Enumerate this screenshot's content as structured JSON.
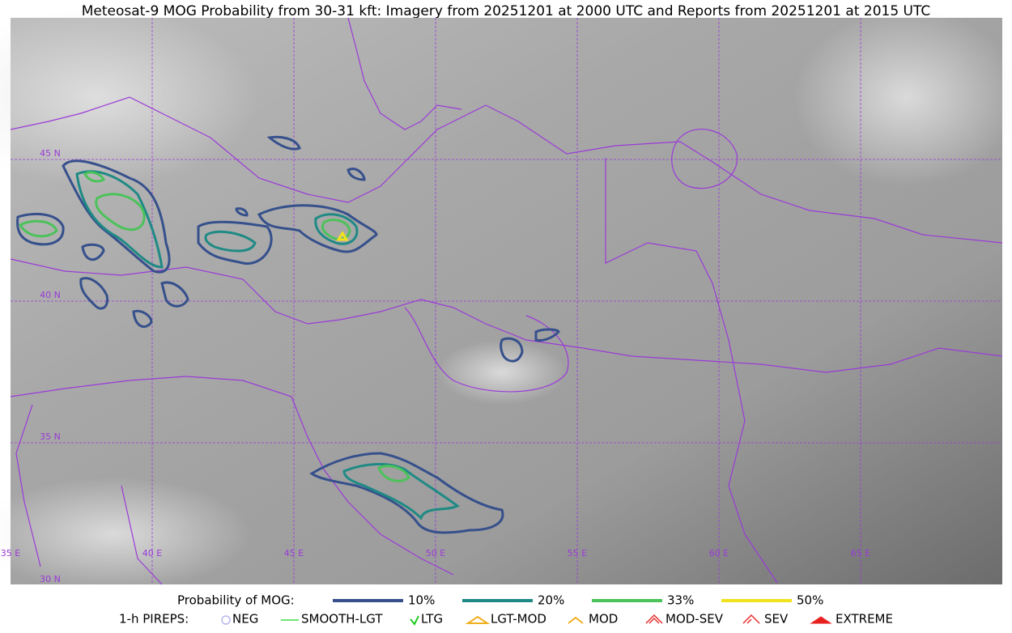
{
  "title": "Meteosat-9 MOG Probability from 30-31 kft: Imagery from 20251201 at 2000 UTC and Reports from 20251201 at 2015 UTC",
  "map": {
    "lat_labels": [
      "45 N",
      "40 N",
      "35 N",
      "30 N"
    ],
    "lon_labels": [
      "35 E",
      "40 E",
      "45 E",
      "50 E",
      "55 E",
      "60 E",
      "65 E"
    ]
  },
  "legend": {
    "probability": {
      "title": "Probability of MOG:",
      "items": [
        {
          "label": "10%",
          "color": "#36508c"
        },
        {
          "label": "20%",
          "color": "#1f8a85"
        },
        {
          "label": "33%",
          "color": "#4cc25a"
        },
        {
          "label": "50%",
          "color": "#f2e21c"
        }
      ]
    },
    "pireps": {
      "title": "1-h PIREPS:",
      "items": [
        {
          "label": "NEG",
          "color": "#b8b8f0"
        },
        {
          "label": "SMOOTH-LGT",
          "color": "#44dd44"
        },
        {
          "label": "LTG",
          "color": "#22cc22"
        },
        {
          "label": "LGT-MOD",
          "color": "#f0b020"
        },
        {
          "label": "MOD",
          "color": "#f0b020"
        },
        {
          "label": "MOD-SEV",
          "color": "#e83030"
        },
        {
          "label": "SEV",
          "color": "#e83030"
        },
        {
          "label": "EXTREME",
          "color": "#e82020"
        }
      ]
    }
  }
}
